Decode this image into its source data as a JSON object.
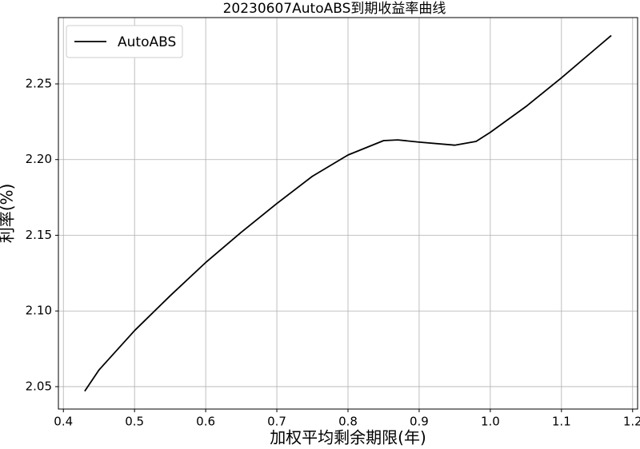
{
  "chart_data": {
    "type": "line",
    "title": "20230607AutoABS到期收益率曲线",
    "x_label": "加权平均剩余期限(年)",
    "y_label": "利率(%)",
    "x": [
      0.43,
      0.45,
      0.5,
      0.55,
      0.6,
      0.65,
      0.7,
      0.75,
      0.8,
      0.85,
      0.87,
      0.9,
      0.95,
      0.98,
      1.0,
      1.05,
      1.1,
      1.15,
      1.17
    ],
    "series": [
      {
        "name": "AutoABS",
        "color": "#000000",
        "values": [
          2.047,
          2.061,
          2.087,
          2.11,
          2.132,
          2.152,
          2.171,
          2.189,
          2.203,
          2.2125,
          2.213,
          2.2115,
          2.2095,
          2.212,
          2.218,
          2.235,
          2.254,
          2.274,
          2.282
        ]
      }
    ],
    "xlim": [
      0.393,
      1.207
    ],
    "ylim": [
      2.0352,
      2.2938
    ],
    "xticks": [
      0.4,
      0.5,
      0.6,
      0.7,
      0.8,
      0.9,
      {
        "value": 1.0,
        "label": "1.0"
      },
      1.1,
      1.2
    ],
    "yticks": [
      2.05,
      {
        "value": 2.1,
        "label": "2.10"
      },
      2.15,
      {
        "value": 2.2,
        "label": "2.20"
      },
      2.25
    ],
    "grid": true,
    "legend": "upper-left"
  }
}
